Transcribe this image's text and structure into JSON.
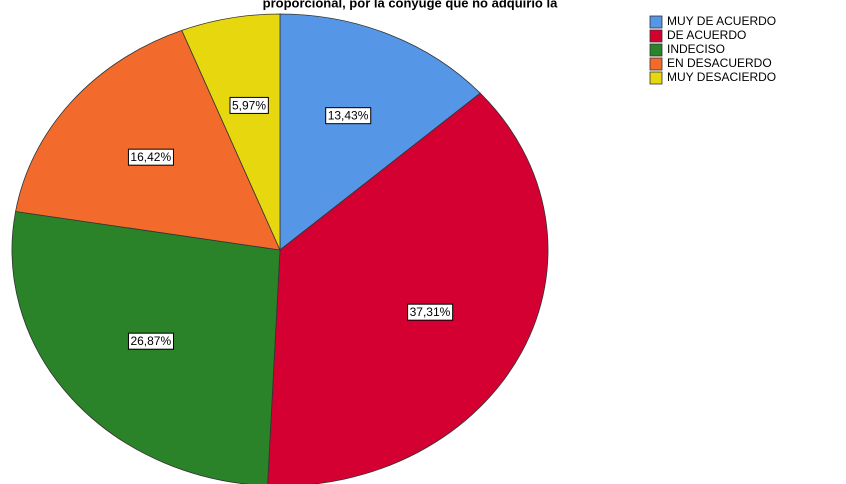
{
  "chart_data": {
    "type": "pie",
    "title": "proporcional, por la conyuge que no adquirio la",
    "categories": [
      "MUY DE ACUERDO",
      "DE ACUERDO",
      "INDECISO",
      "EN DESACUERDO",
      "MUY DESACIERDO"
    ],
    "values": [
      13.43,
      37.31,
      26.87,
      16.42,
      5.97
    ],
    "value_labels": [
      "13,43%",
      "37,31%",
      "26,87%",
      "16,42%",
      "5,97%"
    ],
    "colors": [
      "#5596e6",
      "#d50032",
      "#2a8229",
      "#f26b2c",
      "#e6d70e"
    ],
    "legend": "top-right"
  }
}
